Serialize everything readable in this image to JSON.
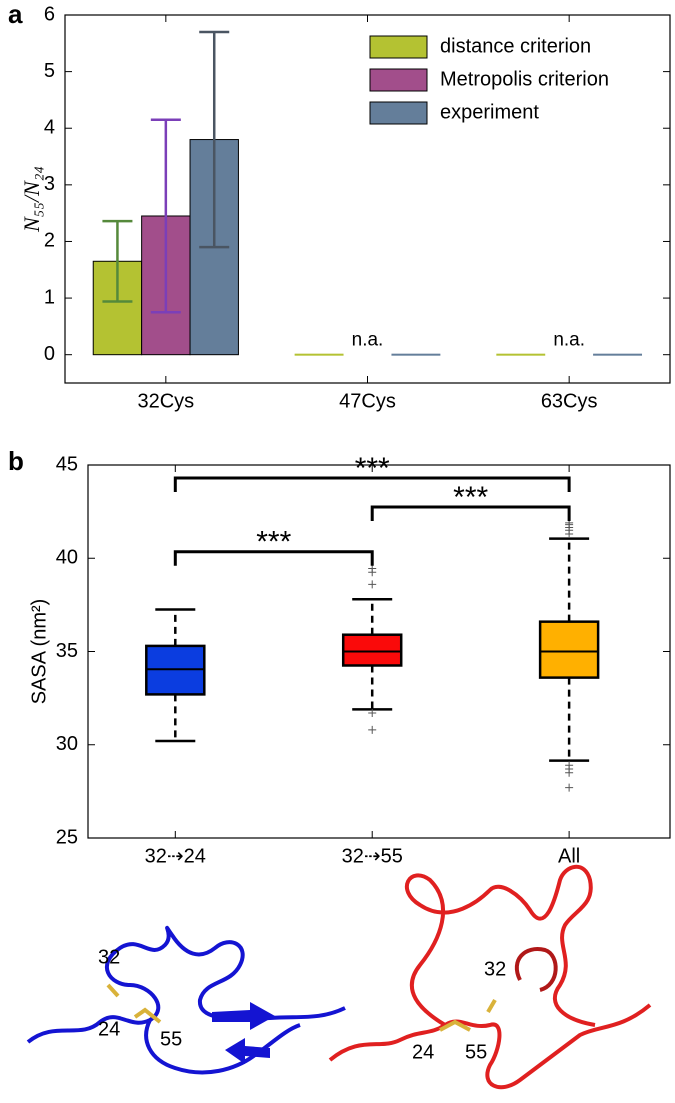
{
  "chart_data": [
    {
      "type": "bar",
      "panel_label": "a",
      "ylabel": "N₅₅/N₂₄",
      "categories": [
        "32Cys",
        "47Cys",
        "63Cys"
      ],
      "series": [
        {
          "name": "distance criterion",
          "color": "#b4c232",
          "error_color": "#55893b",
          "values": [
            1.65,
            0,
            0
          ],
          "errors": [
            0.71,
            null,
            null
          ]
        },
        {
          "name": "Metropolis criterion",
          "color": "#a24e8b",
          "error_color": "#7b3fb8",
          "values": [
            2.45,
            null,
            null
          ],
          "value_labels": [
            null,
            "n.a.",
            "n.a."
          ],
          "errors": [
            1.7,
            null,
            null
          ]
        },
        {
          "name": "experiment",
          "color": "#647e9a",
          "error_color": "#4a5562",
          "values": [
            3.8,
            0,
            0
          ],
          "errors": [
            1.9,
            null,
            null
          ]
        }
      ],
      "ylim": [
        -0.5,
        6
      ],
      "yticks": [
        0,
        1,
        2,
        3,
        4,
        5,
        6
      ],
      "legend": "upper right"
    },
    {
      "type": "box",
      "panel_label": "b",
      "ylabel": "SASA (nm²)",
      "categories": [
        "32⇢24",
        "32⇢55",
        "All"
      ],
      "boxes": [
        {
          "color": "#0b3de0",
          "whislo": 30.2,
          "q1": 32.7,
          "med": 34.05,
          "q3": 35.3,
          "whishi": 37.25,
          "fliers": []
        },
        {
          "color": "#fa0a0a",
          "whislo": 31.9,
          "q1": 34.25,
          "med": 35.0,
          "q3": 35.9,
          "whishi": 37.8,
          "fliers": [
            39.45,
            39.25,
            38.6,
            31.7,
            30.8
          ]
        },
        {
          "color": "#ffb000",
          "whislo": 29.15,
          "q1": 33.6,
          "med": 35.0,
          "q3": 36.6,
          "whishi": 41.05,
          "fliers": [
            41.3,
            41.5,
            41.65,
            41.8,
            41.9,
            28.9,
            28.7,
            28.5,
            27.7
          ]
        }
      ],
      "ylim": [
        25,
        45
      ],
      "yticks": [
        25,
        30,
        35,
        40,
        45
      ],
      "significance": [
        {
          "from": 0,
          "to": 2,
          "y": 44.3,
          "text": "***"
        },
        {
          "from": 1,
          "to": 2,
          "y": 42.75,
          "text": "***"
        },
        {
          "from": 0,
          "to": 1,
          "y": 40.35,
          "text": "***"
        }
      ]
    }
  ],
  "structures": [
    {
      "labels": [
        "32",
        "24",
        "55"
      ]
    },
    {
      "labels": [
        "32",
        "24",
        "55"
      ]
    }
  ]
}
